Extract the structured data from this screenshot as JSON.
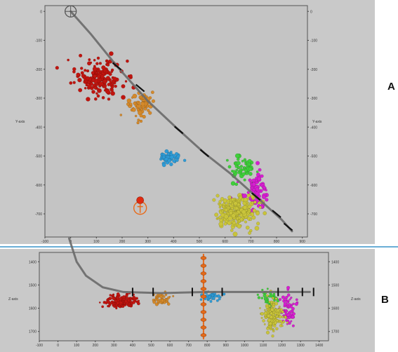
{
  "chart_data": [
    {
      "panel": "A",
      "type": "scatter",
      "xlabel": "",
      "ylabel": "Y-axis",
      "ylabel_right": "Y-axis",
      "x_ticks": [
        "-100",
        "0",
        "100",
        "200",
        "300",
        "400",
        "500",
        "600",
        "700",
        "800",
        "900"
      ],
      "y_ticks": [
        "0",
        "-100",
        "-200",
        "-300",
        "-400",
        "-500",
        "-600",
        "-700"
      ],
      "xlim": [
        -100,
        920
      ],
      "ylim": [
        -780,
        20
      ],
      "grid": false,
      "colors": {
        "red": "#c0150f",
        "orange": "#d4892a",
        "blue": "#2e9bd6",
        "green": "#3fcf3a",
        "magenta": "#d61fd0",
        "yellow": "#c9c43a",
        "well": "#6a6a6a",
        "marker": "#e86a1a"
      },
      "well_path": [
        [
          0,
          0
        ],
        [
          80,
          -80
        ],
        [
          180,
          -190
        ],
        [
          300,
          -310
        ],
        [
          420,
          -410
        ],
        [
          520,
          -490
        ],
        [
          620,
          -560
        ],
        [
          720,
          -640
        ],
        [
          820,
          -720
        ],
        [
          860,
          -760
        ]
      ],
      "stage_ticks": [
        [
          180,
          -190
        ],
        [
          270,
          -265
        ],
        [
          420,
          -410
        ],
        [
          520,
          -490
        ],
        [
          720,
          -640
        ],
        [
          800,
          -700
        ],
        [
          845,
          -745
        ]
      ],
      "clusters": [
        {
          "name": "red",
          "center": [
            110,
            -230
          ],
          "spread": [
            85,
            55
          ],
          "count": 180
        },
        {
          "name": "orange",
          "center": [
            270,
            -320
          ],
          "spread": [
            40,
            45
          ],
          "count": 70
        },
        {
          "name": "blue",
          "center": [
            380,
            -510
          ],
          "spread": [
            35,
            25
          ],
          "count": 50
        },
        {
          "name": "green",
          "center": [
            660,
            -540
          ],
          "spread": [
            50,
            35
          ],
          "count": 60
        },
        {
          "name": "magenta",
          "center": [
            720,
            -620
          ],
          "spread": [
            45,
            55
          ],
          "count": 90
        },
        {
          "name": "yellow",
          "center": [
            640,
            -690
          ],
          "spread": [
            75,
            50
          ],
          "count": 230
        }
      ],
      "marker_point": [
        270,
        -670
      ]
    },
    {
      "panel": "B",
      "type": "scatter",
      "xlabel": "",
      "ylabel": "Z-axis",
      "ylabel_right": "Z-axis",
      "x_ticks": [
        "-100",
        "0",
        "100",
        "200",
        "300",
        "400",
        "500",
        "600",
        "700",
        "800",
        "900",
        "1000",
        "1100",
        "1200",
        "1300",
        "1400"
      ],
      "y_ticks": [
        "1400",
        "1500",
        "1600",
        "1700"
      ],
      "y_ticks_right": [
        "1400",
        "1500",
        "1600",
        "1700"
      ],
      "xlim": [
        -100,
        1450
      ],
      "ylim": [
        1740,
        1360
      ],
      "grid": false,
      "well_path": [
        [
          60,
          1300
        ],
        [
          100,
          1400
        ],
        [
          150,
          1460
        ],
        [
          240,
          1510
        ],
        [
          350,
          1530
        ],
        [
          550,
          1535
        ],
        [
          800,
          1530
        ],
        [
          1100,
          1530
        ],
        [
          1350,
          1530
        ]
      ],
      "stage_ticks": [
        [
          400,
          1530
        ],
        [
          510,
          1530
        ],
        [
          720,
          1530
        ],
        [
          880,
          1530
        ],
        [
          1180,
          1530
        ],
        [
          1310,
          1530
        ],
        [
          1370,
          1530
        ]
      ],
      "marker_x": 780,
      "clusters": [
        {
          "name": "red",
          "center": [
            340,
            1570
          ],
          "spread": [
            70,
            25
          ],
          "count": 160
        },
        {
          "name": "orange",
          "center": [
            560,
            1560
          ],
          "spread": [
            40,
            20
          ],
          "count": 45
        },
        {
          "name": "blue",
          "center": [
            820,
            1550
          ],
          "spread": [
            55,
            20
          ],
          "count": 40
        },
        {
          "name": "green",
          "center": [
            1130,
            1560
          ],
          "spread": [
            45,
            35
          ],
          "count": 40
        },
        {
          "name": "magenta",
          "center": [
            1230,
            1600
          ],
          "spread": [
            35,
            60
          ],
          "count": 70
        },
        {
          "name": "yellow",
          "center": [
            1150,
            1630
          ],
          "spread": [
            50,
            60
          ],
          "count": 160
        }
      ]
    }
  ],
  "labels": {
    "panel_a": "A",
    "panel_b": "B"
  }
}
